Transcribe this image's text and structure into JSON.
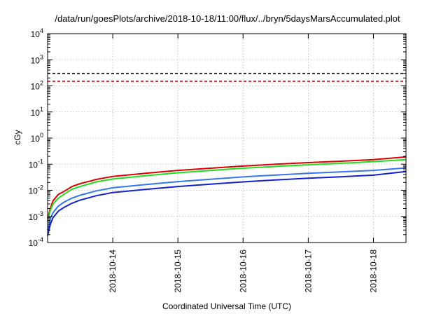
{
  "chart_data": {
    "type": "line",
    "title": "/data/run/goesPlots/archive/2018-10-18/11:00/flux/../bryn/5daysMarsAccumulated.plot",
    "xlabel": "Coordinated Universal Time (UTC)",
    "ylabel": "cGy",
    "x_scale": "time",
    "y_scale": "log",
    "xlim": [
      "2018-10-13T00:00",
      "2018-10-18T12:00"
    ],
    "ylim": [
      0.0001,
      10000
    ],
    "x_ticks": [
      "2018-10-14",
      "2018-10-15",
      "2018-10-16",
      "2018-10-17",
      "2018-10-18"
    ],
    "y_ticks": [
      {
        "value": 0.0001,
        "mantissa": "10",
        "exponent": "-4"
      },
      {
        "value": 0.001,
        "mantissa": "10",
        "exponent": "-3"
      },
      {
        "value": 0.01,
        "mantissa": "10",
        "exponent": "-2"
      },
      {
        "value": 0.1,
        "mantissa": "10",
        "exponent": "-1"
      },
      {
        "value": 1,
        "mantissa": "10",
        "exponent": "0"
      },
      {
        "value": 10,
        "mantissa": "10",
        "exponent": "1"
      },
      {
        "value": 100,
        "mantissa": "10",
        "exponent": "2"
      },
      {
        "value": 1000,
        "mantissa": "10",
        "exponent": "3"
      },
      {
        "value": 10000,
        "mantissa": "10",
        "exponent": "4"
      }
    ],
    "grid": true,
    "x": [
      "2018-10-13T00:00",
      "2018-10-13T01:00",
      "2018-10-13T02:00",
      "2018-10-13T04:00",
      "2018-10-13T06:00",
      "2018-10-13T09:00",
      "2018-10-13T12:00",
      "2018-10-13T18:00",
      "2018-10-14T00:00",
      "2018-10-14T12:00",
      "2018-10-15T00:00",
      "2018-10-15T12:00",
      "2018-10-16T00:00",
      "2018-10-16T12:00",
      "2018-10-17T00:00",
      "2018-10-17T12:00",
      "2018-10-18T00:00",
      "2018-10-18T12:00"
    ],
    "series": [
      {
        "color": "#dd0000",
        "values": [
          0.0008,
          0.002,
          0.004,
          0.007,
          0.009,
          0.014,
          0.018,
          0.026,
          0.034,
          0.045,
          0.058,
          0.07,
          0.085,
          0.1,
          0.115,
          0.13,
          0.15,
          0.19
        ]
      },
      {
        "color": "#22dd22",
        "values": [
          0.0006,
          0.0017,
          0.003,
          0.005,
          0.007,
          0.011,
          0.014,
          0.021,
          0.027,
          0.036,
          0.047,
          0.057,
          0.07,
          0.082,
          0.095,
          0.108,
          0.125,
          0.15
        ]
      },
      {
        "color": "#3377ee",
        "values": [
          0.0003,
          0.0008,
          0.0014,
          0.0025,
          0.0035,
          0.005,
          0.0065,
          0.0095,
          0.0125,
          0.0165,
          0.0215,
          0.0265,
          0.0325,
          0.0385,
          0.0445,
          0.0505,
          0.058,
          0.072
        ]
      },
      {
        "color": "#1122cc",
        "values": [
          0.00018,
          0.0005,
          0.0009,
          0.0016,
          0.0022,
          0.0032,
          0.0042,
          0.0062,
          0.0082,
          0.0108,
          0.014,
          0.0172,
          0.021,
          0.025,
          0.029,
          0.033,
          0.038,
          0.052
        ]
      }
    ],
    "reference_lines": [
      {
        "value": 300,
        "color": "#000000",
        "style": "dashed"
      },
      {
        "value": 150,
        "color": "#ee0000",
        "style": "dashed"
      }
    ]
  }
}
